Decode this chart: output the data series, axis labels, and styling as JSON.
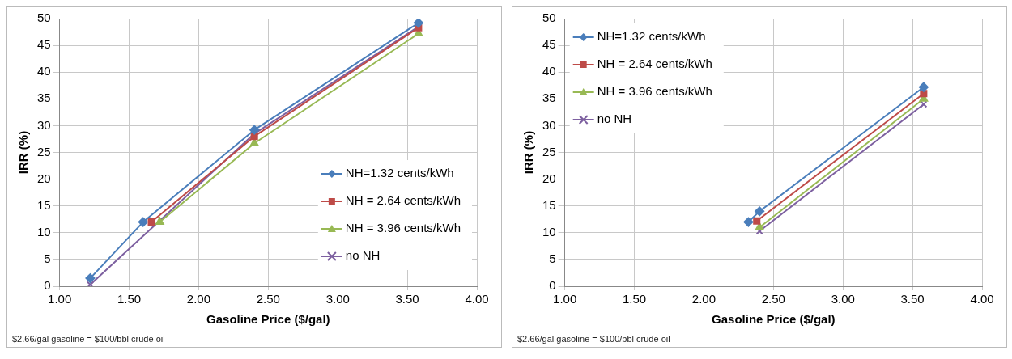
{
  "chart_data": [
    {
      "type": "line",
      "xlabel": "Gasoline Price ($/gal)",
      "ylabel": "IRR (%)",
      "xlim": [
        1,
        4
      ],
      "ylim": [
        0,
        50
      ],
      "xticks": [
        {
          "value": 1,
          "label": "1.00"
        },
        {
          "value": 1.5,
          "label": "1.50"
        },
        {
          "value": 2,
          "label": "2.00"
        },
        {
          "value": 2.5,
          "label": "2.50"
        },
        {
          "value": 3,
          "label": "3.00"
        },
        {
          "value": 3.5,
          "label": "3.50"
        },
        {
          "value": 4,
          "label": "4.00"
        }
      ],
      "yticks": [
        0,
        5,
        10,
        15,
        20,
        25,
        30,
        35,
        40,
        45,
        50
      ],
      "grid": true,
      "legend": "bottom right",
      "line_style": "solid",
      "annotations": [
        "$2.66/gal gasoline = $100/bbl crude oil"
      ],
      "series": [
        {
          "name": "NH=1.32 cents/kWh",
          "color": "#4a7ebb",
          "marker": "diamond",
          "x": [
            1.22,
            1.6,
            2.4,
            3.58
          ],
          "values": [
            1.5,
            12,
            29.2,
            49.2
          ]
        },
        {
          "name": "NH = 2.64 cents/kWh",
          "color": "#be4b48",
          "marker": "square",
          "x": [
            1.66,
            2.4,
            3.58
          ],
          "values": [
            12,
            28,
            48.3
          ]
        },
        {
          "name": "NH = 3.96 cents/kWh",
          "color": "#98b954",
          "marker": "triangle",
          "x": [
            1.72,
            2.4,
            3.58
          ],
          "values": [
            12,
            26.7,
            47.2
          ]
        },
        {
          "name": "no NH",
          "color": "#7d60a0",
          "marker": "cross",
          "x": [
            1.22,
            2.4,
            3.58
          ],
          "values": [
            0.3,
            28.5,
            48.5
          ]
        }
      ]
    },
    {
      "type": "line",
      "xlabel": "Gasoline Price ($/gal)",
      "ylabel": "IRR (%)",
      "xlim": [
        1,
        4
      ],
      "ylim": [
        0,
        50
      ],
      "xticks": [
        {
          "value": 1,
          "label": "1.00"
        },
        {
          "value": 1.5,
          "label": "1.50"
        },
        {
          "value": 2,
          "label": "2.00"
        },
        {
          "value": 2.5,
          "label": "2.50"
        },
        {
          "value": 3,
          "label": "3.00"
        },
        {
          "value": 3.5,
          "label": "3.50"
        },
        {
          "value": 4,
          "label": "4.00"
        }
      ],
      "yticks": [
        0,
        5,
        10,
        15,
        20,
        25,
        30,
        35,
        40,
        45,
        50
      ],
      "grid": true,
      "legend": "top left",
      "line_style": "solid",
      "annotations": [
        "$2.66/gal gasoline = $100/bbl crude oil"
      ],
      "series": [
        {
          "name": "NH=1.32 cents/kWh",
          "color": "#4a7ebb",
          "marker": "diamond",
          "x": [
            2.32,
            2.4,
            3.58
          ],
          "values": [
            12,
            14,
            37.2
          ]
        },
        {
          "name": "NH = 2.64 cents/kWh",
          "color": "#be4b48",
          "marker": "square",
          "x": [
            2.38,
            3.58
          ],
          "values": [
            12.2,
            36
          ]
        },
        {
          "name": "NH = 3.96 cents/kWh",
          "color": "#98b954",
          "marker": "triangle",
          "x": [
            2.4,
            3.58
          ],
          "values": [
            11,
            35
          ]
        },
        {
          "name": "no NH",
          "color": "#7d60a0",
          "marker": "cross",
          "x": [
            2.4,
            3.58
          ],
          "values": [
            10.3,
            34
          ]
        }
      ]
    }
  ]
}
